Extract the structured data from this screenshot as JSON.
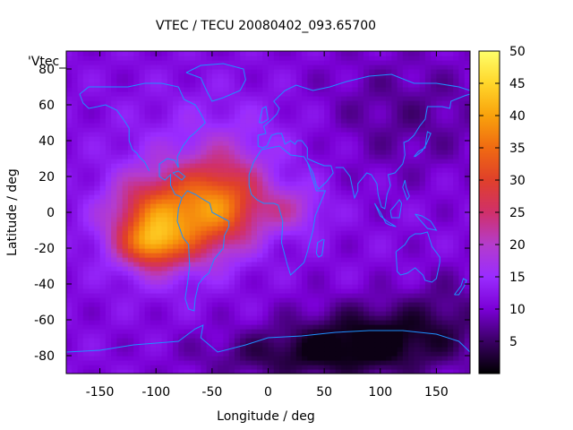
{
  "chart_data": {
    "type": "heatmap",
    "title": "VTEC / TECU 20080402_093.65700",
    "legend_label": "'Vtec_",
    "xlabel": "Longitude / deg",
    "ylabel": "Latitude / deg",
    "xlim": [
      -180,
      180
    ],
    "ylim": [
      -90,
      90
    ],
    "x_ticks": [
      -150,
      -100,
      -50,
      0,
      50,
      100,
      150
    ],
    "y_ticks": [
      -80,
      -60,
      -40,
      -20,
      0,
      20,
      40,
      60,
      80
    ],
    "colorbar": {
      "range": [
        0,
        50
      ],
      "ticks": [
        5,
        10,
        15,
        20,
        25,
        30,
        35,
        40,
        45,
        50
      ],
      "palette": [
        "#000000",
        "#3a0064",
        "#7a00d6",
        "#9a2cff",
        "#b43ccc",
        "#d0306a",
        "#e0402a",
        "#f06a12",
        "#f9a20c",
        "#ffd62a",
        "#ffff6a"
      ]
    },
    "coastline_color": "#1e90ff",
    "description_fields": {
      "peak_region_lon": [
        -130,
        40
      ],
      "peak_region_lat": [
        -35,
        25
      ],
      "peak_value": 45
    }
  }
}
